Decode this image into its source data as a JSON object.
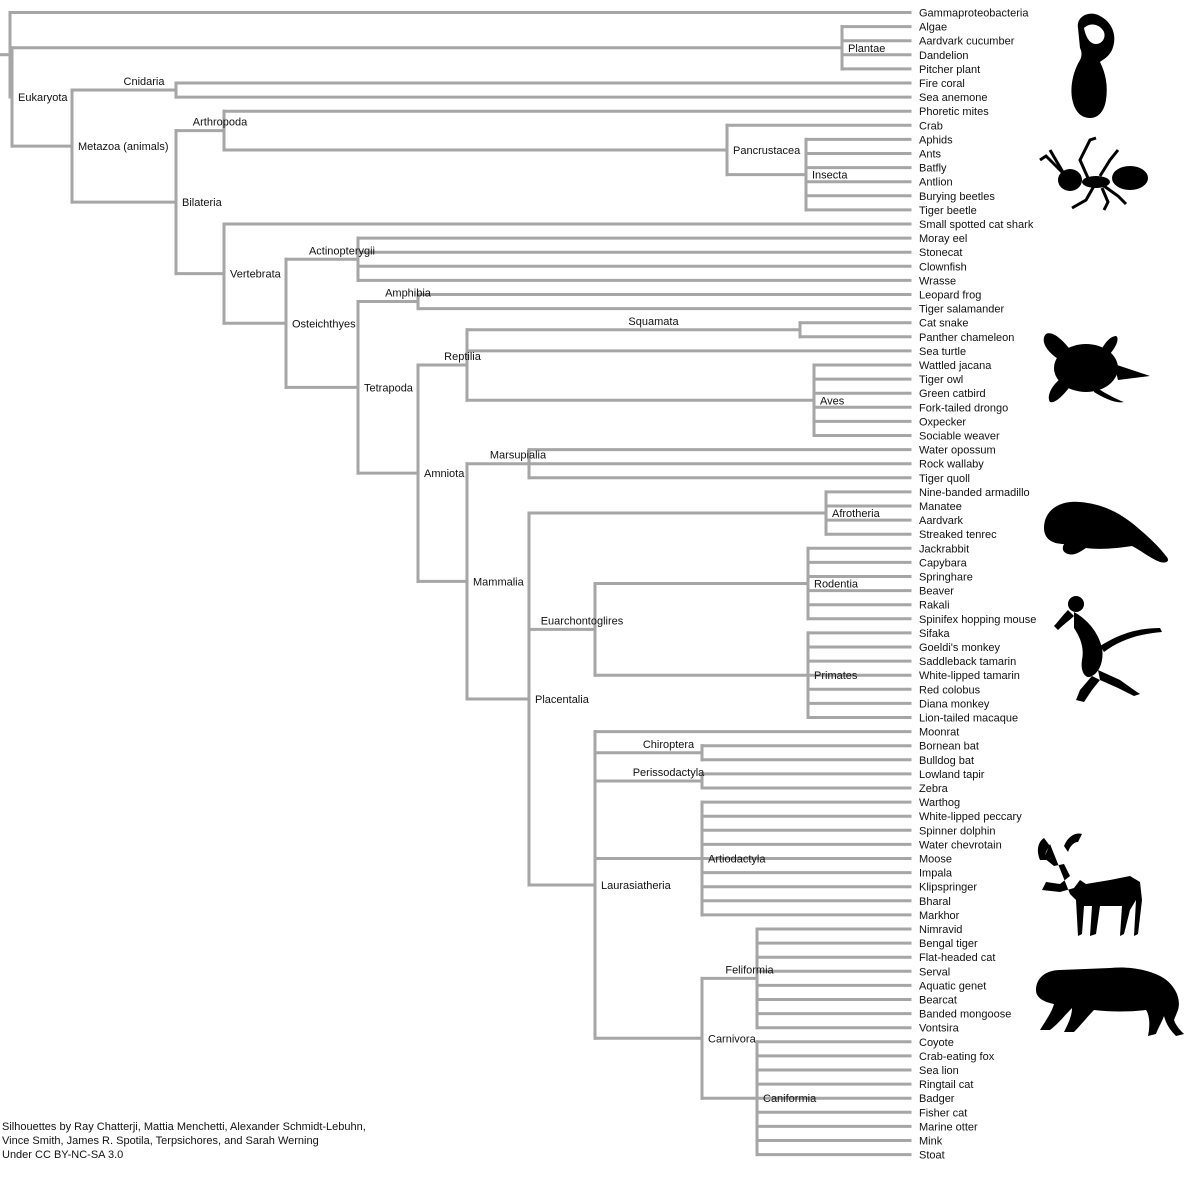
{
  "tree": {
    "name": "",
    "children": [
      {
        "name": "Gammaproteobacteria"
      },
      {
        "name": "Eukaryota",
        "children": [
          {
            "name": "Plantae",
            "children": [
              {
                "name": "Algae"
              },
              {
                "name": "Aardvark cucumber"
              },
              {
                "name": "Dandelion"
              },
              {
                "name": "Pitcher plant"
              }
            ]
          },
          {
            "name": "Metazoa (animals)",
            "children": [
              {
                "name": "Cnidaria",
                "children": [
                  {
                    "name": "Fire coral"
                  },
                  {
                    "name": "Sea anemone"
                  }
                ]
              },
              {
                "name": "Bilateria",
                "children": [
                  {
                    "name": "Arthropoda",
                    "children": [
                      {
                        "name": "Phoretic mites"
                      },
                      {
                        "name": "Pancrustacea",
                        "children": [
                          {
                            "name": "Crab"
                          },
                          {
                            "name": "Insecta",
                            "children": [
                              {
                                "name": "Aphids"
                              },
                              {
                                "name": "Ants"
                              },
                              {
                                "name": "Batfly"
                              },
                              {
                                "name": "Antlion"
                              },
                              {
                                "name": "Burying beetles"
                              },
                              {
                                "name": "Tiger beetle"
                              }
                            ]
                          }
                        ]
                      }
                    ]
                  },
                  {
                    "name": "Vertebrata",
                    "children": [
                      {
                        "name": "Small spotted cat shark"
                      },
                      {
                        "name": "Osteichthyes",
                        "children": [
                          {
                            "name": "Actinopterygii",
                            "children": [
                              {
                                "name": "Moray eel"
                              },
                              {
                                "name": "Stonecat"
                              },
                              {
                                "name": "Clownfish"
                              },
                              {
                                "name": "Wrasse"
                              }
                            ]
                          },
                          {
                            "name": "Tetrapoda",
                            "children": [
                              {
                                "name": "Amphibia",
                                "children": [
                                  {
                                    "name": "Leopard frog"
                                  },
                                  {
                                    "name": "Tiger salamander"
                                  }
                                ]
                              },
                              {
                                "name": "Amniota",
                                "children": [
                                  {
                                    "name": "Reptilia",
                                    "children": [
                                      {
                                        "name": "Squamata",
                                        "children": [
                                          {
                                            "name": "Cat snake"
                                          },
                                          {
                                            "name": "Panther chameleon"
                                          }
                                        ]
                                      },
                                      {
                                        "name": "Sea turtle"
                                      },
                                      {
                                        "name": "Aves",
                                        "children": [
                                          {
                                            "name": "Wattled jacana"
                                          },
                                          {
                                            "name": "Tiger owl"
                                          },
                                          {
                                            "name": "Green catbird"
                                          },
                                          {
                                            "name": "Fork-tailed drongo"
                                          },
                                          {
                                            "name": "Oxpecker"
                                          },
                                          {
                                            "name": "Sociable weaver"
                                          }
                                        ]
                                      }
                                    ]
                                  },
                                  {
                                    "name": "Mammalia",
                                    "children": [
                                      {
                                        "name": "Marsupialia",
                                        "children": [
                                          {
                                            "name": "Water opossum"
                                          },
                                          {
                                            "name": "Rock wallaby"
                                          },
                                          {
                                            "name": "Tiger quoll"
                                          }
                                        ]
                                      },
                                      {
                                        "name": "Placentalia",
                                        "children": [
                                          {
                                            "name": "Afrotheria",
                                            "children": [
                                              {
                                                "name": "Nine-banded armadillo"
                                              },
                                              {
                                                "name": "Manatee"
                                              },
                                              {
                                                "name": "Aardvark"
                                              },
                                              {
                                                "name": "Streaked tenrec"
                                              }
                                            ]
                                          },
                                          {
                                            "name": "Euarchontoglires",
                                            "children": [
                                              {
                                                "name": "Rodentia",
                                                "children": [
                                                  {
                                                    "name": "Jackrabbit"
                                                  },
                                                  {
                                                    "name": "Capybara"
                                                  },
                                                  {
                                                    "name": "Springhare"
                                                  },
                                                  {
                                                    "name": "Beaver"
                                                  },
                                                  {
                                                    "name": "Rakali"
                                                  },
                                                  {
                                                    "name": "Spinifex hopping mouse"
                                                  }
                                                ]
                                              },
                                              {
                                                "name": "Primates",
                                                "children": [
                                                  {
                                                    "name": "Sifaka"
                                                  },
                                                  {
                                                    "name": "Goeldi's monkey"
                                                  },
                                                  {
                                                    "name": "Saddleback tamarin"
                                                  },
                                                  {
                                                    "name": "White-lipped tamarin"
                                                  },
                                                  {
                                                    "name": "Red colobus"
                                                  },
                                                  {
                                                    "name": "Diana monkey"
                                                  },
                                                  {
                                                    "name": "Lion-tailed macaque"
                                                  }
                                                ]
                                              }
                                            ]
                                          },
                                          {
                                            "name": "Laurasiatheria",
                                            "children": [
                                              {
                                                "name": "Moonrat"
                                              },
                                              {
                                                "name": "Chiroptera",
                                                "children": [
                                                  {
                                                    "name": "Bornean bat"
                                                  },
                                                  {
                                                    "name": "Bulldog bat"
                                                  }
                                                ]
                                              },
                                              {
                                                "name": "Perissodactyla",
                                                "children": [
                                                  {
                                                    "name": "Lowland tapir"
                                                  },
                                                  {
                                                    "name": "Zebra"
                                                  }
                                                ]
                                              },
                                              {
                                                "name": "Artiodactyla",
                                                "children": [
                                                  {
                                                    "name": "Warthog"
                                                  },
                                                  {
                                                    "name": "White-lipped peccary"
                                                  },
                                                  {
                                                    "name": "Spinner dolphin"
                                                  },
                                                  {
                                                    "name": "Water chevrotain"
                                                  },
                                                  {
                                                    "name": "Moose"
                                                  },
                                                  {
                                                    "name": "Impala"
                                                  },
                                                  {
                                                    "name": "Klipspringer"
                                                  },
                                                  {
                                                    "name": "Bharal"
                                                  },
                                                  {
                                                    "name": "Markhor"
                                                  }
                                                ]
                                              },
                                              {
                                                "name": "Carnivora",
                                                "children": [
                                                  {
                                                    "name": "Feliformia",
                                                    "children": [
                                                      {
                                                        "name": "Nimravid"
                                                      },
                                                      {
                                                        "name": "Bengal tiger"
                                                      },
                                                      {
                                                        "name": "Flat-headed cat"
                                                      },
                                                      {
                                                        "name": "Serval"
                                                      },
                                                      {
                                                        "name": "Aquatic genet"
                                                      },
                                                      {
                                                        "name": "Bearcat"
                                                      },
                                                      {
                                                        "name": "Banded mongoose"
                                                      },
                                                      {
                                                        "name": "Vontsira"
                                                      }
                                                    ]
                                                  },
                                                  {
                                                    "name": "Caniformia",
                                                    "children": [
                                                      {
                                                        "name": "Coyote"
                                                      },
                                                      {
                                                        "name": "Crab-eating fox"
                                                      },
                                                      {
                                                        "name": "Sea lion"
                                                      },
                                                      {
                                                        "name": "Ringtail cat"
                                                      },
                                                      {
                                                        "name": "Badger"
                                                      },
                                                      {
                                                        "name": "Fisher cat"
                                                      },
                                                      {
                                                        "name": "Marine otter"
                                                      },
                                                      {
                                                        "name": "Mink"
                                                      },
                                                      {
                                                        "name": "Stoat"
                                                      }
                                                    ]
                                                  }
                                                ]
                                              }
                                            ]
                                          }
                                        ]
                                      }
                                    ]
                                  }
                                ]
                              }
                            ]
                          }
                        ]
                      }
                    ]
                  }
                ]
              }
            ]
          }
        ]
      }
    ]
  },
  "silhouettes": [
    "pitcher-plant-icon",
    "ant-icon",
    "sea-turtle-icon",
    "manatee-icon",
    "monkey-icon",
    "moose-icon",
    "tiger-icon"
  ],
  "colors": {
    "branch": "#a6a6a6",
    "text": "#111111",
    "silhouette": "#000000"
  },
  "credits": {
    "text": "Silhouettes by Ray Chatterji, Mattia Menchetti, Alexander Schmidt-Lebuhn, Vince Smith, James R. Spotila, Terpsichores, and Sarah Werning",
    "license": "Under CC BY-NC-SA 3.0"
  }
}
